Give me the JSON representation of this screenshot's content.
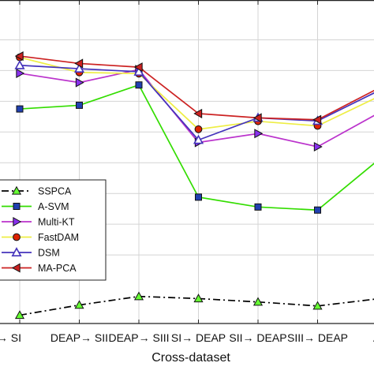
{
  "chart_data": {
    "type": "line",
    "xlabel": "Cross-dataset",
    "ylabel": "",
    "title": "",
    "categories": [
      "SEED→SI",
      "DEAP→SII",
      "DEAP→SIII",
      "SI→DEAP",
      "SII→DEAP",
      "SIII→DEAP",
      "AVG"
    ],
    "category_labels_visible": [
      "→ SI",
      "DEAP→ SII",
      "DEAP→ SIII",
      "SI→ DEAP",
      "SII→ DEAP",
      "SIII→ DEAP",
      "A"
    ],
    "ylim": [
      0,
      100
    ],
    "y_ticks": [
      20,
      30,
      40,
      50,
      60,
      70,
      80,
      90
    ],
    "grid": true,
    "legend_position": "left",
    "series": [
      {
        "name": "SSPCA",
        "color": "#000000",
        "dash": "9,4,2,4",
        "marker": "triangle-up",
        "marker_fill": "#66ff33",
        "values": [
          0.4,
          3.7,
          6.5,
          5.8,
          4.7,
          3.4,
          5.7
        ]
      },
      {
        "name": "A-SVM",
        "color": "#33dd00",
        "dash": "",
        "marker": "square",
        "marker_fill": "#2040b0",
        "values": [
          67.5,
          68.7,
          75.3,
          38.8,
          35.6,
          34.6,
          50.6
        ]
      },
      {
        "name": "Multi-KT",
        "color": "#bb33cc",
        "dash": "",
        "marker": "triangle-right",
        "marker_fill": "#8830ee",
        "values": [
          79.1,
          76.1,
          80.3,
          56.6,
          59.5,
          55.2,
          65.9
        ]
      },
      {
        "name": "FastDAM",
        "color": "#eeee44",
        "dash": "",
        "marker": "circle",
        "marker_fill": "#dd2200",
        "values": [
          84.3,
          79.4,
          79.0,
          60.9,
          63.5,
          62.0,
          71.3
        ]
      },
      {
        "name": "DSM",
        "color": "#4433bb",
        "dash": "",
        "marker": "triangle-up-open",
        "marker_fill": "#ffffff",
        "values": [
          81.7,
          80.6,
          79.6,
          57.4,
          64.6,
          63.6,
          73.2
        ]
      },
      {
        "name": "MA-PCA",
        "color": "#cc2222",
        "dash": "",
        "marker": "triangle-left",
        "marker_fill": "#cc2222",
        "values": [
          84.7,
          82.3,
          81.1,
          66.0,
          64.6,
          64.0,
          74.0
        ]
      }
    ]
  }
}
